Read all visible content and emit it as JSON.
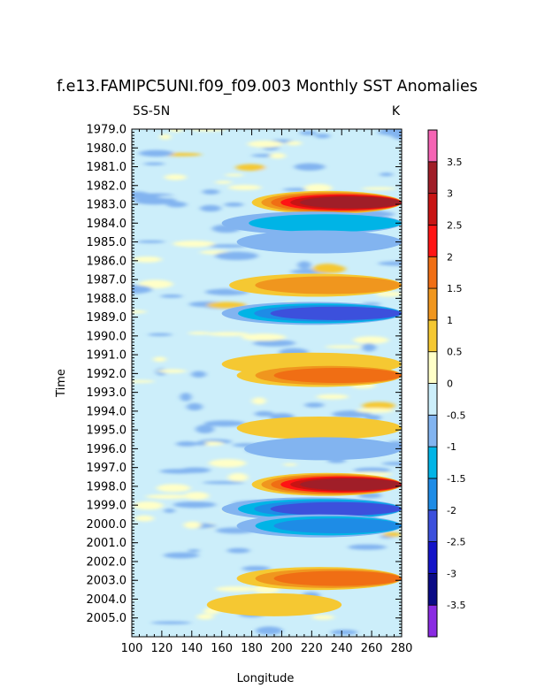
{
  "chart_data": {
    "type": "heatmap",
    "title": "f.e13.FAMIPC5UNI.f09_f09.003 Monthly SST Anomalies",
    "left_subtitle": "5S-5N",
    "right_subtitle": "K",
    "xlabel": "Longitude",
    "ylabel": "Time",
    "xlim": [
      100,
      280
    ],
    "ylim": [
      1979.0,
      2006.0
    ],
    "x_ticks": [
      100,
      120,
      140,
      160,
      180,
      200,
      220,
      240,
      260,
      280
    ],
    "x_tick_labels": [
      "100",
      "120",
      "140",
      "160",
      "180",
      "200",
      "220",
      "240",
      "260",
      "280"
    ],
    "y_ticks": [
      1979,
      1980,
      1981,
      1982,
      1983,
      1984,
      1985,
      1986,
      1987,
      1988,
      1989,
      1990,
      1991,
      1992,
      1993,
      1994,
      1995,
      1996,
      1997,
      1998,
      1999,
      2000,
      2001,
      2002,
      2003,
      2004,
      2005
    ],
    "y_tick_labels": [
      "1979.0",
      "1980.0",
      "1981.0",
      "1982.0",
      "1983.0",
      "1984.0",
      "1985.0",
      "1986.0",
      "1987.0",
      "1988.0",
      "1989.0",
      "1990.0",
      "1991.0",
      "1992.0",
      "1993.0",
      "1994.0",
      "1995.0",
      "1996.0",
      "1997.0",
      "1998.0",
      "1999.0",
      "2000.0",
      "2001.0",
      "2002.0",
      "2003.0",
      "2004.0",
      "2005.0"
    ],
    "contour_levels": [
      -3.5,
      -3,
      -2.5,
      -2,
      -1.5,
      -1,
      -0.5,
      0,
      0.5,
      1,
      1.5,
      2,
      2.5,
      3,
      3.5
    ],
    "colorbar_labels": [
      "3.5",
      "3",
      "2.5",
      "2",
      "1.5",
      "1",
      "0.5",
      "0",
      "-0.5",
      "-1",
      "-1.5",
      "-2",
      "-2.5",
      "-3",
      "-3.5"
    ],
    "colors": [
      "#8a2be2",
      "#0a0a85",
      "#1414c8",
      "#3c50dc",
      "#1e8ce6",
      "#00b4e6",
      "#82b4f0",
      "#cceefa",
      "#ffffc8",
      "#f5c832",
      "#f0961e",
      "#f06e14",
      "#ff1414",
      "#c81414",
      "#a01e28",
      "#f564b4"
    ],
    "bands": [
      {
        "t": 1982.9,
        "lon_start": 180,
        "lon_end": 280,
        "value": 3.2
      },
      {
        "t": 1984.0,
        "lon_start": 160,
        "lon_end": 280,
        "value": -1.2
      },
      {
        "t": 1985.0,
        "lon_start": 170,
        "lon_end": 280,
        "value": -0.8
      },
      {
        "t": 1987.3,
        "lon_start": 165,
        "lon_end": 280,
        "value": 1.3
      },
      {
        "t": 1988.8,
        "lon_start": 160,
        "lon_end": 280,
        "value": -2.2
      },
      {
        "t": 1991.5,
        "lon_start": 160,
        "lon_end": 280,
        "value": 0.8
      },
      {
        "t": 1992.1,
        "lon_start": 170,
        "lon_end": 280,
        "value": 1.8
      },
      {
        "t": 1994.9,
        "lon_start": 170,
        "lon_end": 280,
        "value": 0.9
      },
      {
        "t": 1996.0,
        "lon_start": 175,
        "lon_end": 280,
        "value": -0.9
      },
      {
        "t": 1997.9,
        "lon_start": 180,
        "lon_end": 280,
        "value": 3.4
      },
      {
        "t": 1999.2,
        "lon_start": 160,
        "lon_end": 280,
        "value": -2.0
      },
      {
        "t": 2000.1,
        "lon_start": 170,
        "lon_end": 280,
        "value": -1.6
      },
      {
        "t": 2002.9,
        "lon_start": 170,
        "lon_end": 280,
        "value": 1.6
      },
      {
        "t": 2004.3,
        "lon_start": 150,
        "lon_end": 240,
        "value": 0.8
      }
    ]
  }
}
